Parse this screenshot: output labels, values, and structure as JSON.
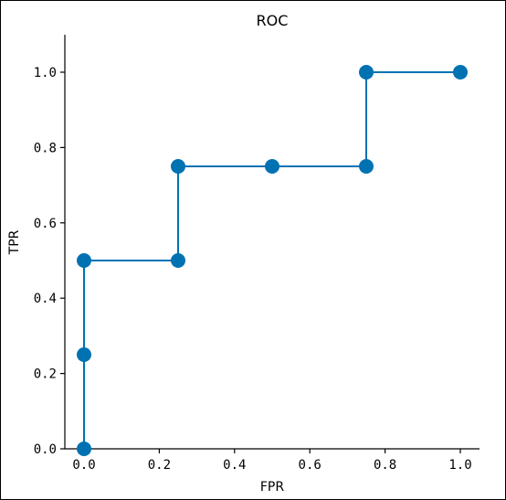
{
  "chart_data": {
    "type": "line",
    "title": "ROC",
    "xlabel": "FPR",
    "ylabel": "TPR",
    "xlim": [
      -0.05,
      1.05
    ],
    "ylim": [
      0.0,
      1.1
    ],
    "xticks": [
      0.0,
      0.2,
      0.4,
      0.6,
      0.8,
      1.0
    ],
    "yticks": [
      0.0,
      0.2,
      0.4,
      0.6,
      0.8,
      1.0
    ],
    "xtick_labels": [
      "0.0",
      "0.2",
      "0.4",
      "0.6",
      "0.8",
      "1.0"
    ],
    "ytick_labels": [
      "0.0",
      "0.2",
      "0.4",
      "0.6",
      "0.8",
      "1.0"
    ],
    "grid": false,
    "series": [
      {
        "color": "#0072B2",
        "x": [
          0.0,
          0.0,
          0.0,
          0.25,
          0.25,
          0.5,
          0.75,
          0.75,
          1.0
        ],
        "y": [
          0.0,
          0.25,
          0.5,
          0.5,
          0.75,
          0.75,
          0.75,
          1.0,
          1.0
        ]
      }
    ]
  }
}
